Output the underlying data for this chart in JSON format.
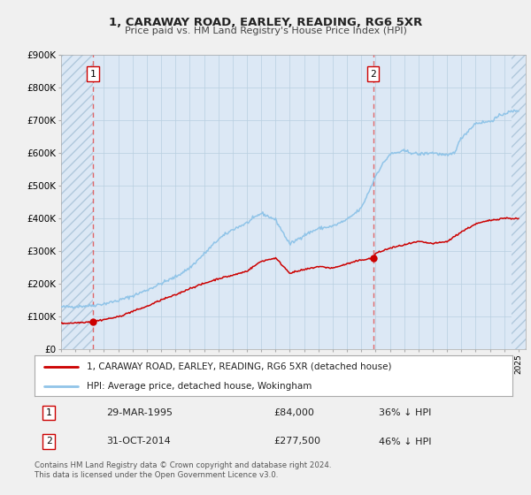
{
  "title": "1, CARAWAY ROAD, EARLEY, READING, RG6 5XR",
  "subtitle": "Price paid vs. HM Land Registry's House Price Index (HPI)",
  "ylim": [
    0,
    900000
  ],
  "xlim_start": 1993.0,
  "xlim_end": 2025.5,
  "bg_color": "#f0f0f0",
  "plot_bg_color": "#dce8f5",
  "hatch_color": "#c8d8e8",
  "grid_color": "#b8cfe0",
  "hpi_color": "#90c4e8",
  "price_color": "#cc0000",
  "sale1_date": 1995.24,
  "sale1_price": 84000,
  "sale2_date": 2014.83,
  "sale2_price": 277500,
  "legend_label1": "1, CARAWAY ROAD, EARLEY, READING, RG6 5XR (detached house)",
  "legend_label2": "HPI: Average price, detached house, Wokingham",
  "footer1": "Contains HM Land Registry data © Crown copyright and database right 2024.",
  "footer2": "This data is licensed under the Open Government Licence v3.0.",
  "table_row1": [
    "1",
    "29-MAR-1995",
    "£84,000",
    "36% ↓ HPI"
  ],
  "table_row2": [
    "2",
    "31-OCT-2014",
    "£277,500",
    "46% ↓ HPI"
  ],
  "ytick_labels": [
    "£0",
    "£100K",
    "£200K",
    "£300K",
    "£400K",
    "£500K",
    "£600K",
    "£700K",
    "£800K",
    "£900K"
  ],
  "ytick_values": [
    0,
    100000,
    200000,
    300000,
    400000,
    500000,
    600000,
    700000,
    800000,
    900000
  ]
}
